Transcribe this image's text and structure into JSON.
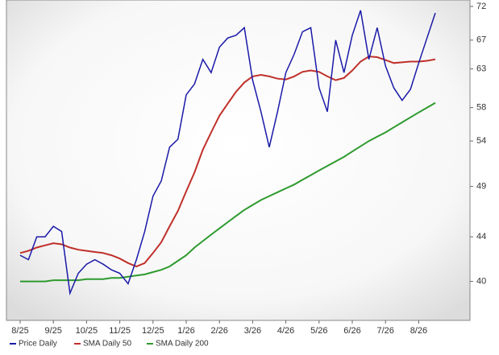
{
  "chart_data": {
    "type": "line",
    "log_scale": true,
    "grid": false,
    "categories": [
      "8/25",
      null,
      null,
      null,
      "9/25",
      null,
      null,
      null,
      "10/25",
      null,
      null,
      null,
      "11/25",
      null,
      null,
      null,
      "12/25",
      null,
      null,
      null,
      "1/26",
      null,
      null,
      null,
      "2/26",
      null,
      null,
      null,
      "3/26",
      null,
      null,
      null,
      "4/26",
      null,
      null,
      null,
      "5/26",
      null,
      null,
      null,
      "6/26",
      null,
      null,
      null,
      "7/26",
      null,
      null,
      null,
      "8/26",
      null,
      null
    ],
    "series": [
      {
        "name": "Price Daily",
        "color": "#1a1aa8",
        "values": [
          42.3,
          41.9,
          44,
          44,
          45,
          44.5,
          39,
          40.7,
          41.5,
          41.9,
          41.5,
          41,
          40.7,
          39.8,
          41.9,
          44.5,
          48,
          49.6,
          53.3,
          54.2,
          59.6,
          61,
          64.3,
          62.5,
          66,
          67.3,
          67.7,
          68.8,
          61.5,
          57.5,
          53.3,
          57.5,
          62.5,
          65,
          68.2,
          68.8,
          60.5,
          57.5,
          67,
          62.5,
          67.7,
          71.4,
          64.3,
          68.8,
          63.4,
          60.5,
          58.9,
          60.3,
          63.8,
          67.3,
          71
        ]
      },
      {
        "name": "SMA Daily 50",
        "color": "#c0302a",
        "values": [
          42.5,
          42.7,
          43,
          43.2,
          43.4,
          43.3,
          43,
          42.8,
          42.7,
          42.6,
          42.5,
          42.3,
          42,
          41.6,
          41.3,
          41.6,
          42.5,
          43.5,
          45,
          46.5,
          48.5,
          50.5,
          53,
          55,
          57,
          58.5,
          60,
          61.2,
          62,
          62.2,
          62,
          61.7,
          61.6,
          62,
          62.6,
          62.8,
          62.6,
          62,
          61.5,
          61.8,
          62.8,
          64,
          64.7,
          64.6,
          64.2,
          63.8,
          63.9,
          64,
          64,
          64.1,
          64.3
        ]
      },
      {
        "name": "SMA Daily 200",
        "color": "#2e9a2e",
        "values": [
          40,
          40,
          40,
          40,
          40.1,
          40.1,
          40.1,
          40.1,
          40.2,
          40.2,
          40.2,
          40.3,
          40.3,
          40.4,
          40.5,
          40.6,
          40.8,
          41,
          41.3,
          41.8,
          42.3,
          43,
          43.6,
          44.2,
          44.8,
          45.4,
          46,
          46.6,
          47.1,
          47.6,
          48,
          48.4,
          48.8,
          49.2,
          49.7,
          50.2,
          50.7,
          51.2,
          51.7,
          52.2,
          52.8,
          53.4,
          54,
          54.5,
          55,
          55.6,
          56.2,
          56.8,
          57.4,
          58,
          58.6
        ]
      }
    ],
    "ylim": [
      36.8,
      73
    ],
    "yticks": [
      40,
      44,
      49,
      54,
      58,
      63,
      67,
      72
    ]
  }
}
